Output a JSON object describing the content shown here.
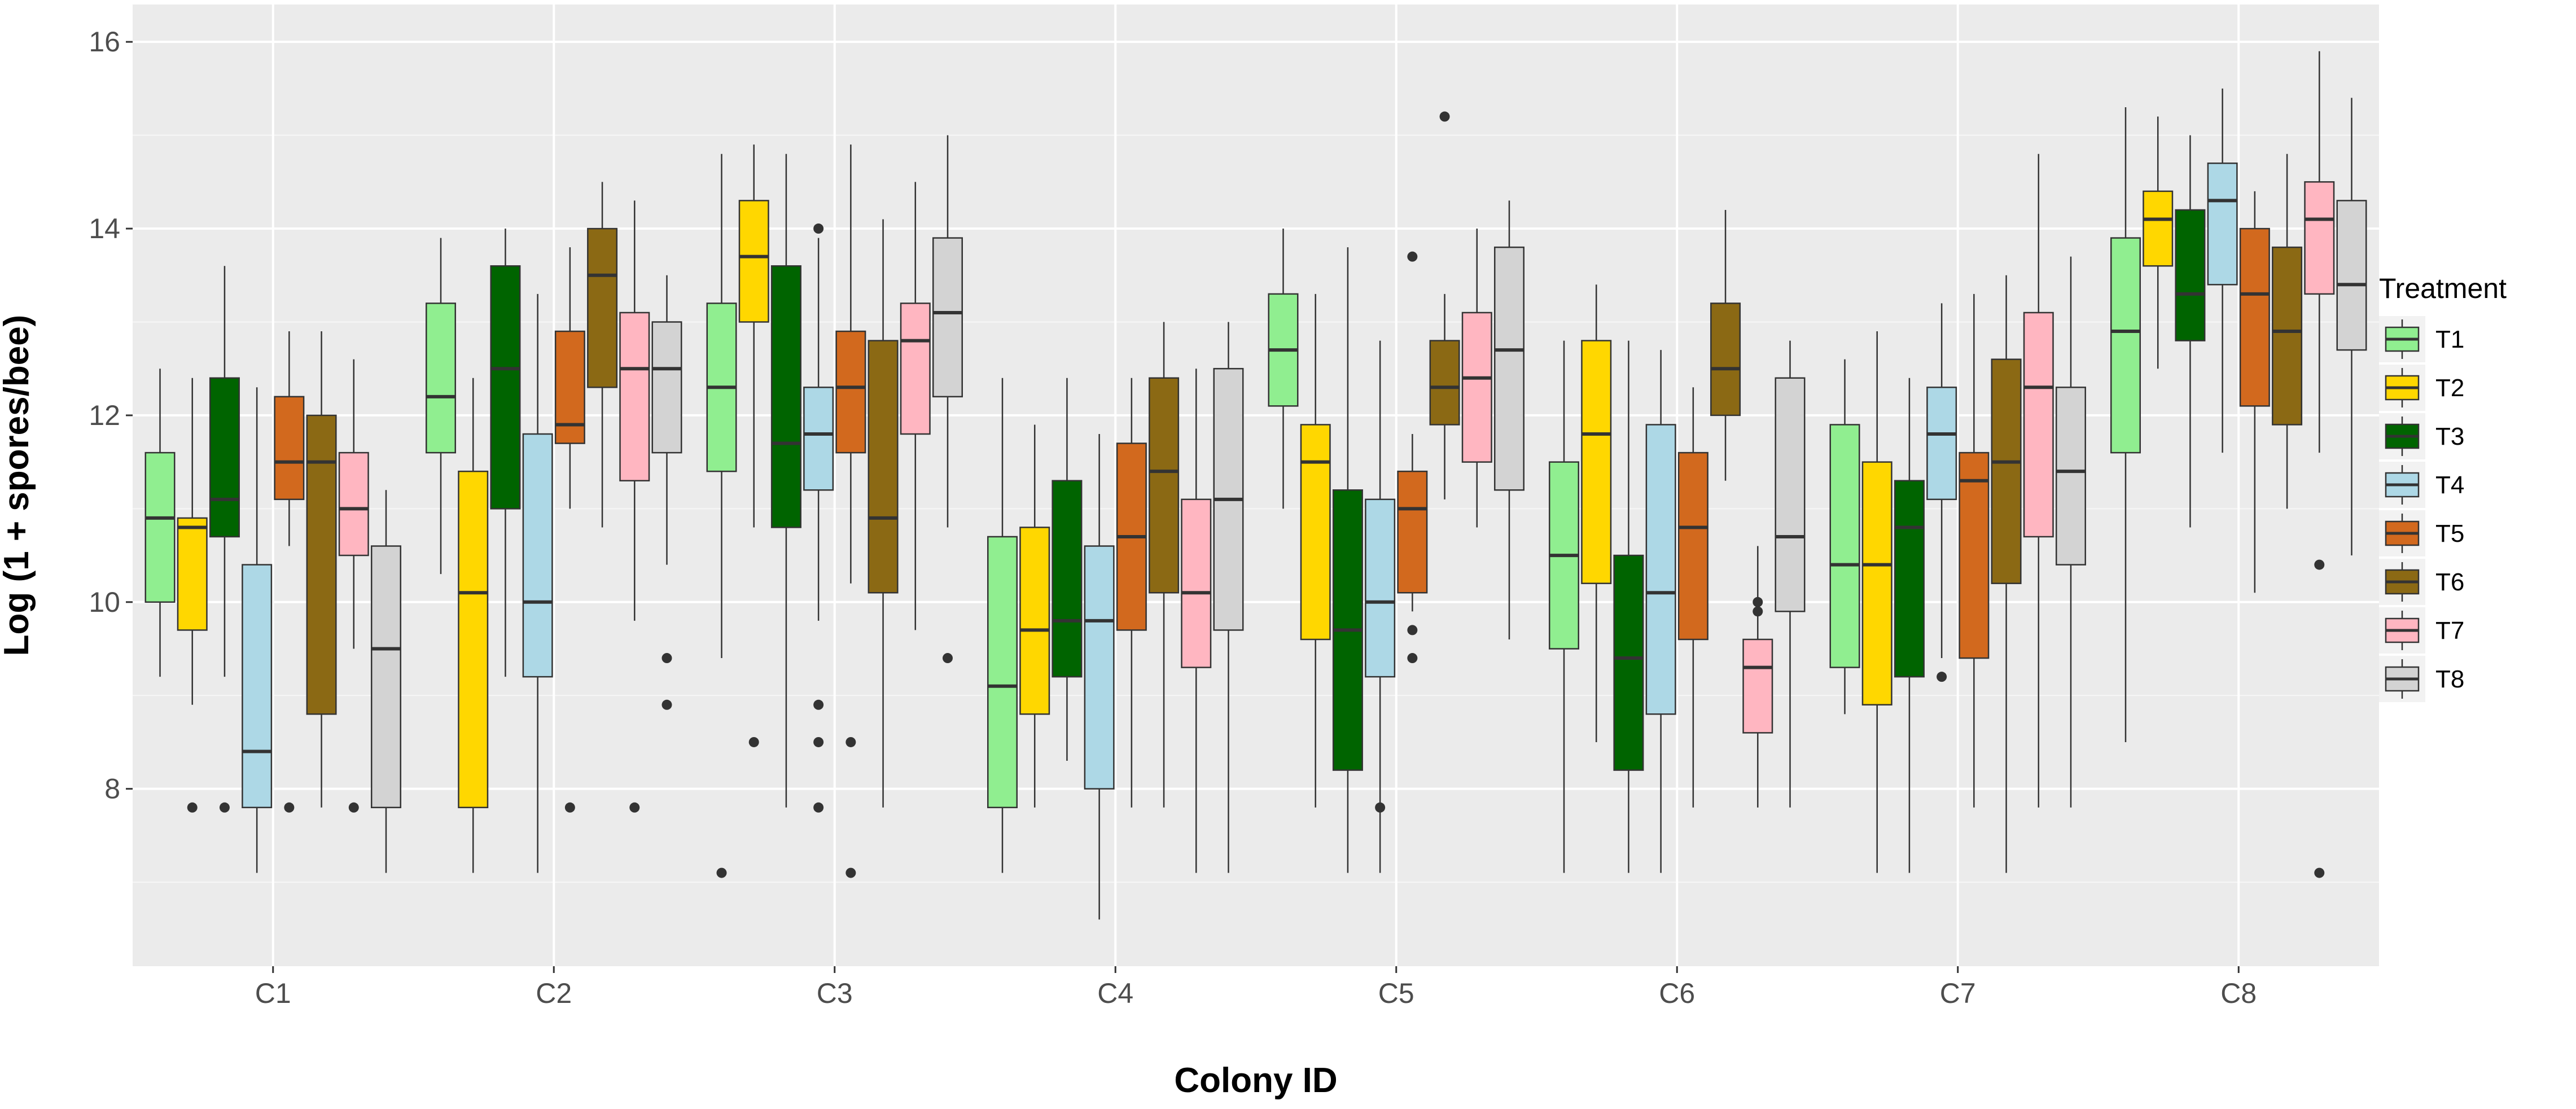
{
  "chart_data": {
    "type": "boxplot",
    "title": "",
    "xlabel": "Colony ID",
    "ylabel": "Log (1 + spores/bee)",
    "ylim": [
      6.1,
      16.4
    ],
    "yticks": [
      8,
      10,
      12,
      14,
      16
    ],
    "grid": true,
    "legend_position": "right",
    "legend_title": "Treatment",
    "categories": [
      "C1",
      "C2",
      "C3",
      "C4",
      "C5",
      "C6",
      "C7",
      "C8"
    ],
    "series": [
      {
        "name": "T1",
        "color": "#90ee90",
        "boxes": [
          {
            "lw": 9.2,
            "q1": 10.0,
            "med": 10.9,
            "q3": 11.6,
            "uw": 12.5,
            "out": []
          },
          {
            "lw": 10.3,
            "q1": 11.6,
            "med": 12.2,
            "q3": 13.2,
            "uw": 13.9,
            "out": []
          },
          {
            "lw": 9.4,
            "q1": 11.4,
            "med": 12.3,
            "q3": 13.2,
            "uw": 14.8,
            "out": [
              7.1
            ]
          },
          {
            "lw": 7.1,
            "q1": 7.8,
            "med": 9.1,
            "q3": 10.7,
            "uw": 12.4,
            "out": []
          },
          {
            "lw": 11.0,
            "q1": 12.1,
            "med": 12.7,
            "q3": 13.3,
            "uw": 14.0,
            "out": []
          },
          {
            "lw": 7.1,
            "q1": 9.5,
            "med": 10.5,
            "q3": 11.5,
            "uw": 12.8,
            "out": []
          },
          {
            "lw": 8.8,
            "q1": 9.3,
            "med": 10.4,
            "q3": 11.9,
            "uw": 12.6,
            "out": []
          },
          {
            "lw": 8.5,
            "q1": 11.6,
            "med": 12.9,
            "q3": 13.9,
            "uw": 15.3,
            "out": []
          }
        ]
      },
      {
        "name": "T2",
        "color": "#ffd700",
        "boxes": [
          {
            "lw": 8.9,
            "q1": 9.7,
            "med": 10.8,
            "q3": 10.9,
            "uw": 12.4,
            "out": [
              7.8
            ]
          },
          {
            "lw": 7.1,
            "q1": 7.8,
            "med": 10.1,
            "q3": 11.4,
            "uw": 12.4,
            "out": []
          },
          {
            "lw": 10.8,
            "q1": 13.0,
            "med": 13.7,
            "q3": 14.3,
            "uw": 14.9,
            "out": [
              8.5
            ]
          },
          {
            "lw": 7.8,
            "q1": 8.8,
            "med": 9.7,
            "q3": 10.8,
            "uw": 11.9,
            "out": []
          },
          {
            "lw": 7.8,
            "q1": 9.6,
            "med": 11.5,
            "q3": 11.9,
            "uw": 13.3,
            "out": []
          },
          {
            "lw": 8.5,
            "q1": 10.2,
            "med": 11.8,
            "q3": 12.8,
            "uw": 13.4,
            "out": []
          },
          {
            "lw": 7.1,
            "q1": 8.9,
            "med": 10.4,
            "q3": 11.5,
            "uw": 12.9,
            "out": []
          },
          {
            "lw": 12.5,
            "q1": 13.6,
            "med": 14.1,
            "q3": 14.4,
            "uw": 15.2,
            "out": []
          }
        ]
      },
      {
        "name": "T3",
        "color": "#006400",
        "boxes": [
          {
            "lw": 9.2,
            "q1": 10.7,
            "med": 11.1,
            "q3": 12.4,
            "uw": 13.6,
            "out": [
              7.8
            ]
          },
          {
            "lw": 9.2,
            "q1": 11.0,
            "med": 12.5,
            "q3": 13.6,
            "uw": 14.0,
            "out": []
          },
          {
            "lw": 7.8,
            "q1": 10.8,
            "med": 11.7,
            "q3": 13.6,
            "uw": 14.8,
            "out": []
          },
          {
            "lw": 8.3,
            "q1": 9.2,
            "med": 9.8,
            "q3": 11.3,
            "uw": 12.4,
            "out": []
          },
          {
            "lw": 7.1,
            "q1": 8.2,
            "med": 9.7,
            "q3": 11.2,
            "uw": 13.8,
            "out": []
          },
          {
            "lw": 7.1,
            "q1": 8.2,
            "med": 9.4,
            "q3": 10.5,
            "uw": 12.8,
            "out": []
          },
          {
            "lw": 7.1,
            "q1": 9.2,
            "med": 10.8,
            "q3": 11.3,
            "uw": 12.4,
            "out": []
          },
          {
            "lw": 10.8,
            "q1": 12.8,
            "med": 13.3,
            "q3": 14.2,
            "uw": 15.0,
            "out": []
          }
        ]
      },
      {
        "name": "T4",
        "color": "#add8e6",
        "boxes": [
          {
            "lw": 7.1,
            "q1": 7.8,
            "med": 8.4,
            "q3": 10.4,
            "uw": 12.3,
            "out": []
          },
          {
            "lw": 7.1,
            "q1": 9.2,
            "med": 10.0,
            "q3": 11.8,
            "uw": 13.3,
            "out": []
          },
          {
            "lw": 9.8,
            "q1": 11.2,
            "med": 11.8,
            "q3": 12.3,
            "uw": 13.9,
            "out": [
              14.0,
              8.9,
              8.5,
              7.8
            ]
          },
          {
            "lw": 6.6,
            "q1": 8.0,
            "med": 9.8,
            "q3": 10.6,
            "uw": 11.8,
            "out": []
          },
          {
            "lw": 7.1,
            "q1": 9.2,
            "med": 10.0,
            "q3": 11.1,
            "uw": 12.8,
            "out": [
              7.8
            ]
          },
          {
            "lw": 7.1,
            "q1": 8.8,
            "med": 10.1,
            "q3": 11.9,
            "uw": 12.7,
            "out": []
          },
          {
            "lw": 9.4,
            "q1": 11.1,
            "med": 11.8,
            "q3": 12.3,
            "uw": 13.2,
            "out": [
              9.2
            ]
          },
          {
            "lw": 11.6,
            "q1": 13.4,
            "med": 14.3,
            "q3": 14.7,
            "uw": 15.5,
            "out": []
          }
        ]
      },
      {
        "name": "T5",
        "color": "#d2691e",
        "boxes": [
          {
            "lw": 10.6,
            "q1": 11.1,
            "med": 11.5,
            "q3": 12.2,
            "uw": 12.9,
            "out": [
              7.8
            ]
          },
          {
            "lw": 11.0,
            "q1": 11.7,
            "med": 11.9,
            "q3": 12.9,
            "uw": 13.8,
            "out": [
              7.8
            ]
          },
          {
            "lw": 10.2,
            "q1": 11.6,
            "med": 12.3,
            "q3": 12.9,
            "uw": 14.9,
            "out": [
              8.5,
              7.1
            ]
          },
          {
            "lw": 7.8,
            "q1": 9.7,
            "med": 10.7,
            "q3": 11.7,
            "uw": 12.4,
            "out": []
          },
          {
            "lw": 9.9,
            "q1": 10.1,
            "med": 11.0,
            "q3": 11.4,
            "uw": 11.8,
            "out": [
              13.7,
              9.7,
              9.4
            ]
          },
          {
            "lw": 7.8,
            "q1": 9.6,
            "med": 10.8,
            "q3": 11.6,
            "uw": 12.3,
            "out": []
          },
          {
            "lw": 7.8,
            "q1": 9.4,
            "med": 11.3,
            "q3": 11.6,
            "uw": 13.3,
            "out": []
          },
          {
            "lw": 10.1,
            "q1": 12.1,
            "med": 13.3,
            "q3": 14.0,
            "uw": 14.4,
            "out": []
          }
        ]
      },
      {
        "name": "T6",
        "color": "#8b6914",
        "boxes": [
          {
            "lw": 7.8,
            "q1": 8.8,
            "med": 11.5,
            "q3": 12.0,
            "uw": 12.9,
            "out": []
          },
          {
            "lw": 10.8,
            "q1": 12.3,
            "med": 13.5,
            "q3": 14.0,
            "uw": 14.5,
            "out": []
          },
          {
            "lw": 7.8,
            "q1": 10.1,
            "med": 10.9,
            "q3": 12.8,
            "uw": 14.1,
            "out": []
          },
          {
            "lw": 7.8,
            "q1": 10.1,
            "med": 11.4,
            "q3": 12.4,
            "uw": 13.0,
            "out": []
          },
          {
            "lw": 11.1,
            "q1": 11.9,
            "med": 12.3,
            "q3": 12.8,
            "uw": 13.3,
            "out": [
              15.2
            ]
          },
          {
            "lw": 11.3,
            "q1": 12.0,
            "med": 12.5,
            "q3": 13.2,
            "uw": 14.2,
            "out": []
          },
          {
            "lw": 7.1,
            "q1": 10.2,
            "med": 11.5,
            "q3": 12.6,
            "uw": 13.5,
            "out": []
          },
          {
            "lw": 11.0,
            "q1": 11.9,
            "med": 12.9,
            "q3": 13.8,
            "uw": 14.8,
            "out": []
          }
        ]
      },
      {
        "name": "T7",
        "color": "#ffb6c1",
        "boxes": [
          {
            "lw": 9.5,
            "q1": 10.5,
            "med": 11.0,
            "q3": 11.6,
            "uw": 12.6,
            "out": [
              7.8
            ]
          },
          {
            "lw": 9.8,
            "q1": 11.3,
            "med": 12.5,
            "q3": 13.1,
            "uw": 14.3,
            "out": [
              7.8
            ]
          },
          {
            "lw": 9.7,
            "q1": 11.8,
            "med": 12.8,
            "q3": 13.2,
            "uw": 14.5,
            "out": []
          },
          {
            "lw": 7.1,
            "q1": 9.3,
            "med": 10.1,
            "q3": 11.1,
            "uw": 12.5,
            "out": []
          },
          {
            "lw": 10.8,
            "q1": 11.5,
            "med": 12.4,
            "q3": 13.1,
            "uw": 14.0,
            "out": []
          },
          {
            "lw": 7.8,
            "q1": 8.6,
            "med": 9.3,
            "q3": 9.6,
            "uw": 10.6,
            "out": [
              10.0,
              9.9
            ]
          },
          {
            "lw": 7.8,
            "q1": 10.7,
            "med": 12.3,
            "q3": 13.1,
            "uw": 14.8,
            "out": []
          },
          {
            "lw": 11.6,
            "q1": 13.3,
            "med": 14.1,
            "q3": 14.5,
            "uw": 15.9,
            "out": [
              10.4,
              7.1
            ]
          }
        ]
      },
      {
        "name": "T8",
        "color": "#d3d3d3",
        "boxes": [
          {
            "lw": 7.1,
            "q1": 7.8,
            "med": 9.5,
            "q3": 10.6,
            "uw": 11.2,
            "out": []
          },
          {
            "lw": 10.4,
            "q1": 11.6,
            "med": 12.5,
            "q3": 13.0,
            "uw": 13.5,
            "out": [
              9.4,
              8.9
            ]
          },
          {
            "lw": 10.8,
            "q1": 12.2,
            "med": 13.1,
            "q3": 13.9,
            "uw": 15.0,
            "out": [
              9.4
            ]
          },
          {
            "lw": 7.1,
            "q1": 9.7,
            "med": 11.1,
            "q3": 12.5,
            "uw": 13.0,
            "out": []
          },
          {
            "lw": 9.6,
            "q1": 11.2,
            "med": 12.7,
            "q3": 13.8,
            "uw": 14.3,
            "out": []
          },
          {
            "lw": 7.8,
            "q1": 9.9,
            "med": 10.7,
            "q3": 12.4,
            "uw": 12.8,
            "out": []
          },
          {
            "lw": 7.8,
            "q1": 10.4,
            "med": 11.4,
            "q3": 12.3,
            "uw": 13.7,
            "out": []
          },
          {
            "lw": 10.5,
            "q1": 12.7,
            "med": 13.4,
            "q3": 14.3,
            "uw": 15.4,
            "out": []
          }
        ]
      }
    ]
  }
}
